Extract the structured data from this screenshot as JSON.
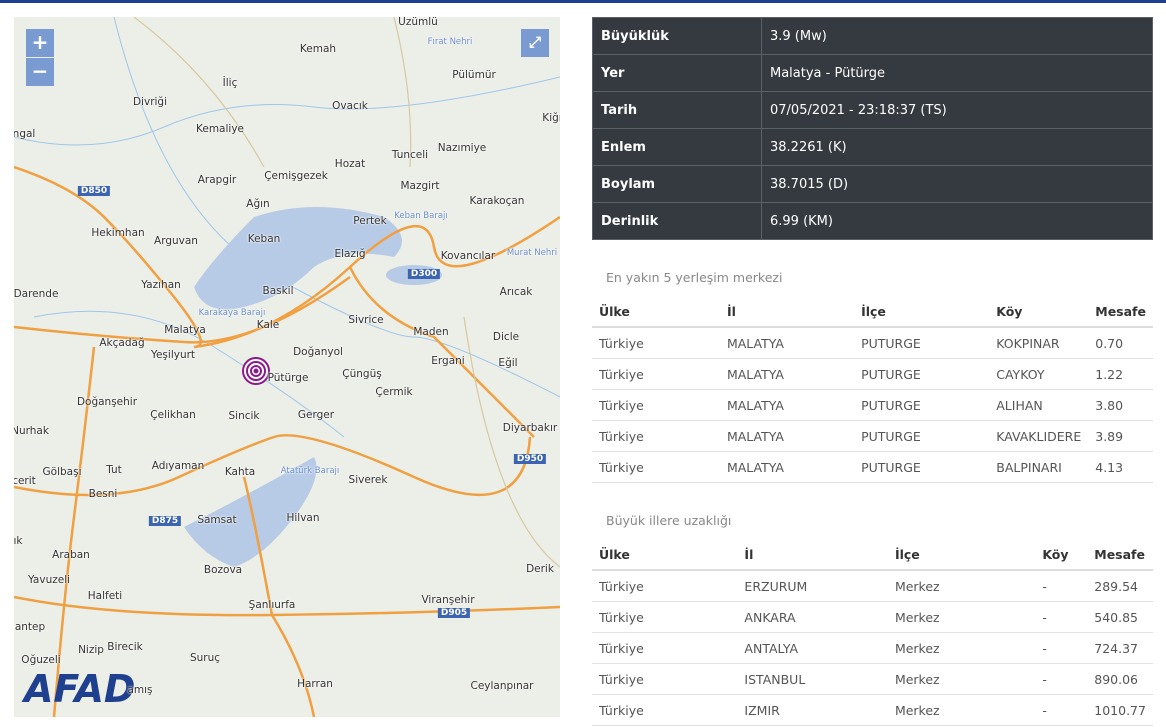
{
  "map": {
    "controls": {
      "zoom_in": "+",
      "zoom_out": "−"
    },
    "logo": "AFAD",
    "labels": [
      "Üzümlü",
      "Kemah",
      "Fırat Nehri",
      "Pülümür",
      "İliç",
      "Divriği",
      "Ovacık",
      "Kiğı",
      "Kemaliye",
      "ngal",
      "Tunceli",
      "Nazımiye",
      "Hozat",
      "Arapgir",
      "Çemişgezek",
      "Mazgirt",
      "D850",
      "Ağın",
      "Pertek",
      "Keban Barajı",
      "Karakoçan",
      "Hekimhan",
      "Arguvan",
      "Keban",
      "Elazığ",
      "D300",
      "Kovancılar",
      "Murat Nehri",
      "Yazıhan",
      "Baskil",
      "Darende",
      "Arıcak",
      "Sivrice",
      "Karakaya Barajı",
      "Kale",
      "Malatya",
      "Maden",
      "Dicle",
      "Akçadağ",
      "Yeşilyurt",
      "Doğanyol",
      "Ergani",
      "Eğil",
      "Pütürge",
      "Çüngüş",
      "Çermik",
      "Doğanşehir",
      "Çelikhan",
      "Sincik",
      "Gerger",
      "Nurhak",
      "Diyarbakır",
      "D950",
      "Adıyaman",
      "Kahta",
      "Atatürk Barajı",
      "Gölbaşı",
      "Tut",
      "Siverek",
      "cerit",
      "Besni",
      "D875",
      "Samsat",
      "Hilvan",
      "ık",
      "Araban",
      "Bozova",
      "Derik",
      "Yavuzeli",
      "Halfeti",
      "Şanlıurfa",
      "Viranşehir",
      "D905",
      "antep",
      "Nizip",
      "Birecik",
      "Oğuzeli",
      "Suruç",
      "Harran",
      "Ceylanpınar",
      "amış"
    ]
  },
  "details": [
    {
      "label": "Büyüklük",
      "value": "3.9 (Mw)"
    },
    {
      "label": "Yer",
      "value": "Malatya - Pütürge"
    },
    {
      "label": "Tarih",
      "value": "07/05/2021 - 23:18:37 (TS)"
    },
    {
      "label": "Enlem",
      "value": "38.2261 (K)"
    },
    {
      "label": "Boylam",
      "value": "38.7015 (D)"
    },
    {
      "label": "Derinlik",
      "value": "6.99 (KM)"
    }
  ],
  "nearest": {
    "title": "En yakın 5 yerleşim merkezi",
    "columns": [
      "Ülke",
      "İl",
      "İlçe",
      "Köy",
      "Mesafe"
    ],
    "rows": [
      [
        "Türkiye",
        "MALATYA",
        "PUTURGE",
        "KOKPINAR",
        "0.70"
      ],
      [
        "Türkiye",
        "MALATYA",
        "PUTURGE",
        "CAYKOY",
        "1.22"
      ],
      [
        "Türkiye",
        "MALATYA",
        "PUTURGE",
        "ALIHAN",
        "3.80"
      ],
      [
        "Türkiye",
        "MALATYA",
        "PUTURGE",
        "KAVAKLIDERE",
        "3.89"
      ],
      [
        "Türkiye",
        "MALATYA",
        "PUTURGE",
        "BALPINARI",
        "4.13"
      ]
    ]
  },
  "cities": {
    "title": "Büyük illere uzaklığı",
    "columns": [
      "Ülke",
      "İl",
      "İlçe",
      "Köy",
      "Mesafe"
    ],
    "rows": [
      [
        "Türkiye",
        "ERZURUM",
        "Merkez",
        "-",
        "289.54"
      ],
      [
        "Türkiye",
        "ANKARA",
        "Merkez",
        "-",
        "540.85"
      ],
      [
        "Türkiye",
        "ANTALYA",
        "Merkez",
        "-",
        "724.37"
      ],
      [
        "Türkiye",
        "ISTANBUL",
        "Merkez",
        "-",
        "890.06"
      ],
      [
        "Türkiye",
        "IZMIR",
        "Merkez",
        "-",
        "1010.77"
      ]
    ]
  }
}
